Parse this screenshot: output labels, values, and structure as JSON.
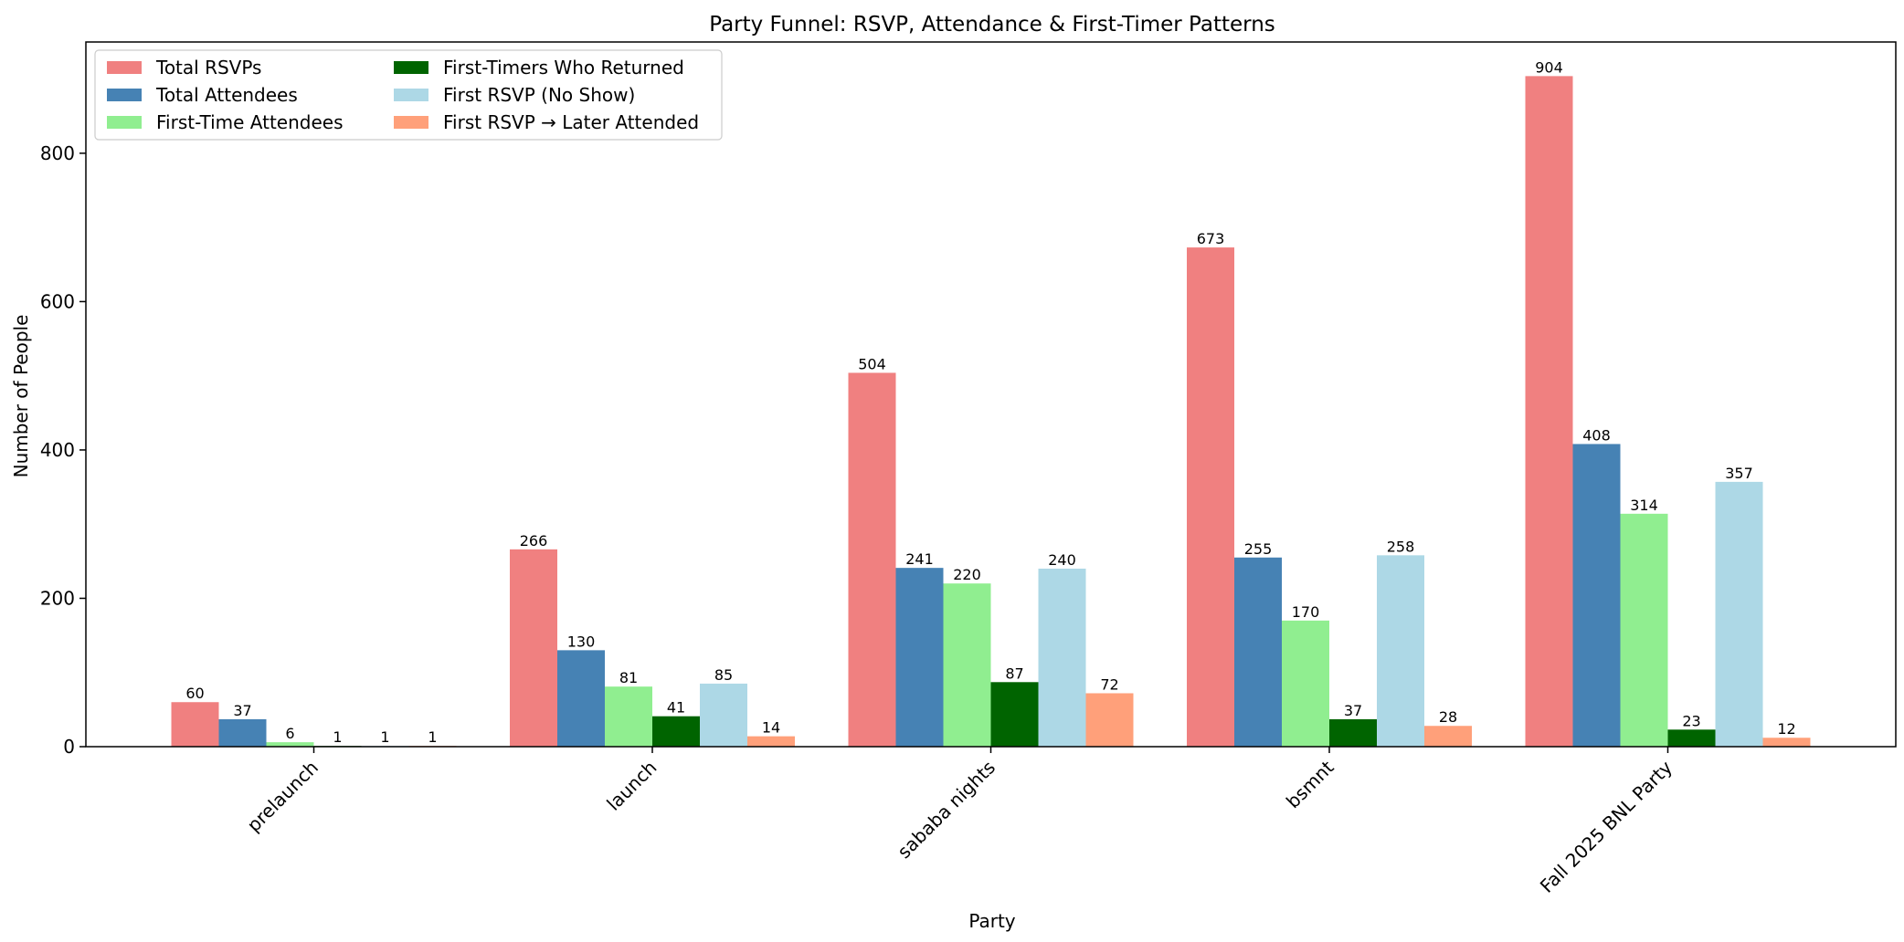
{
  "chart_data": {
    "type": "bar",
    "title": "Party Funnel: RSVP, Attendance & First-Timer Patterns",
    "xlabel": "Party",
    "ylabel": "Number of People",
    "categories": [
      "prelaunch",
      "launch",
      "sababa nights",
      "bsmnt",
      "Fall 2025 BNL Party"
    ],
    "ylim": [
      0,
      950
    ],
    "yticks": [
      0,
      200,
      400,
      600,
      800
    ],
    "grid": false,
    "legend_position": "top-left",
    "series": [
      {
        "name": "Total RSVPs",
        "color": "#f08080",
        "values": [
          60,
          266,
          504,
          673,
          904
        ]
      },
      {
        "name": "Total Attendees",
        "color": "#4682b4",
        "values": [
          37,
          130,
          241,
          255,
          408
        ]
      },
      {
        "name": "First-Time Attendees",
        "color": "#90ee90",
        "values": [
          6,
          81,
          220,
          170,
          314
        ]
      },
      {
        "name": "First-Timers Who Returned",
        "color": "#006400",
        "values": [
          1,
          41,
          87,
          37,
          23
        ]
      },
      {
        "name": "First RSVP (No Show)",
        "color": "#add8e6",
        "values": [
          1,
          85,
          240,
          258,
          357
        ]
      },
      {
        "name": "First RSVP → Later Attended",
        "color": "#ffa07a",
        "values": [
          1,
          14,
          72,
          28,
          12
        ]
      }
    ]
  }
}
